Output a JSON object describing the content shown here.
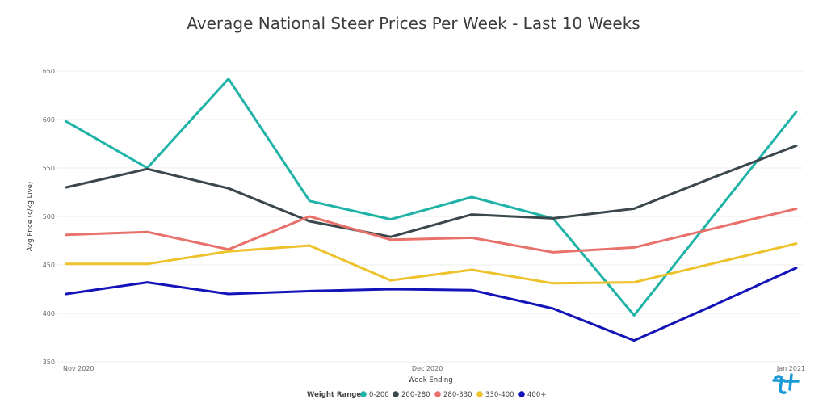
{
  "chart_data": {
    "type": "line",
    "title": "Average National Steer Prices Per Week - Last 10 Weeks",
    "xlabel": "Week Ending",
    "ylabel": "Avg Price (c/kg Live)",
    "ylim": [
      350,
      650
    ],
    "yticks": [
      350,
      400,
      450,
      500,
      550,
      600,
      650
    ],
    "x_tick_labels": [
      {
        "label": "Nov 2020",
        "at_point": 0
      },
      {
        "label": "Dec 2020",
        "at_point": 4.3
      },
      {
        "label": "Jan 2021",
        "at_point": 8.8
      }
    ],
    "legend_title": "Weight Range",
    "legend_position": "bottom-center",
    "grid": true,
    "series": [
      {
        "name": "0-200",
        "color": "#1fb3a8",
        "values": [
          598,
          550,
          642,
          516,
          497,
          520,
          498,
          398,
          503,
          608
        ]
      },
      {
        "name": "200-280",
        "color": "#3a474d",
        "values": [
          530,
          549,
          529,
          495,
          479,
          502,
          498,
          508,
          541,
          573
        ]
      },
      {
        "name": "280-330",
        "color": "#e8716b",
        "values": [
          481,
          484,
          466,
          500,
          476,
          478,
          463,
          468,
          488,
          508
        ]
      },
      {
        "name": "330-400",
        "color": "#edc22b",
        "values": [
          451,
          451,
          464,
          470,
          434,
          445,
          431,
          432,
          452,
          472
        ]
      },
      {
        "name": "400+",
        "color": "#1313b8",
        "values": [
          420,
          432,
          420,
          423,
          425,
          424,
          405,
          372,
          409,
          447
        ]
      }
    ]
  },
  "logo": {
    "name": "logo-icon",
    "color": "#1a9ad6"
  }
}
